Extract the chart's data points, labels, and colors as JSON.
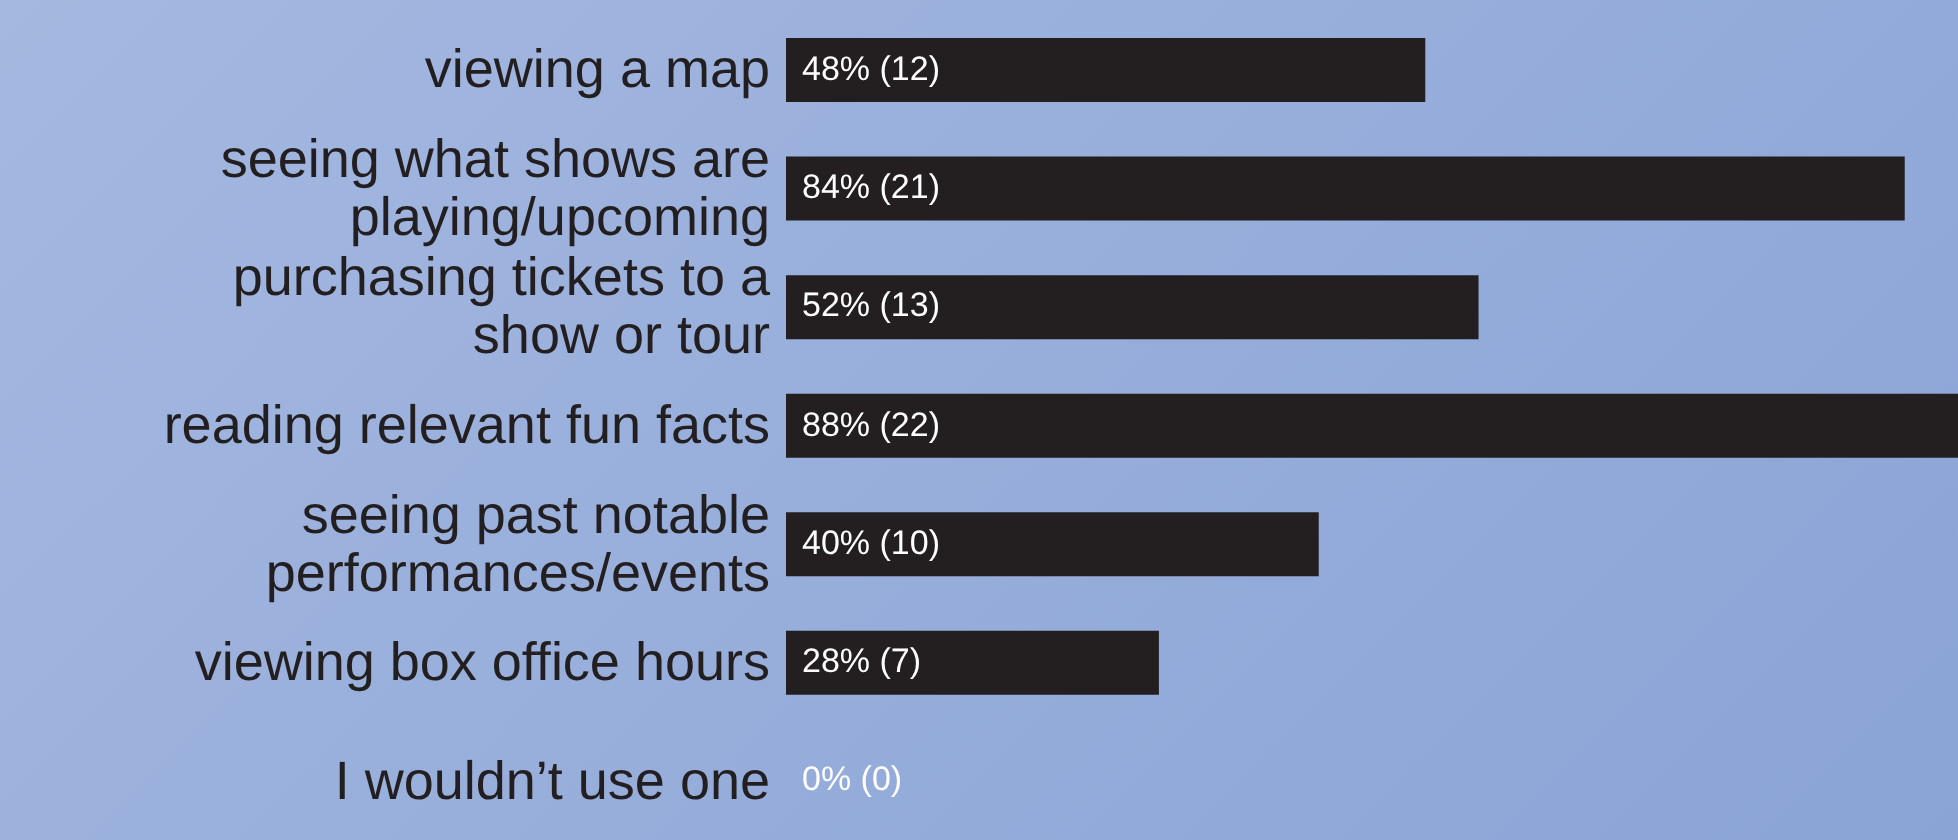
{
  "chart_data": {
    "type": "bar",
    "orientation": "horizontal",
    "categories": [
      "viewing a map",
      "seeing what shows are playing/upcoming",
      "purchasing tickets to a show or tour",
      "reading relevant fun facts",
      "seeing past notable performances/events",
      "viewing box office hours",
      "I wouldn’t use one"
    ],
    "values": [
      48,
      84,
      52,
      88,
      40,
      28,
      0
    ],
    "value_labels": [
      "48% (12)",
      "84% (21)",
      "52% (13)",
      "88% (22)",
      "40% (10)",
      "28% (7)",
      "0% (0)"
    ],
    "color": "#231f20",
    "grid": false,
    "legend": false,
    "tick_labels": "y"
  }
}
